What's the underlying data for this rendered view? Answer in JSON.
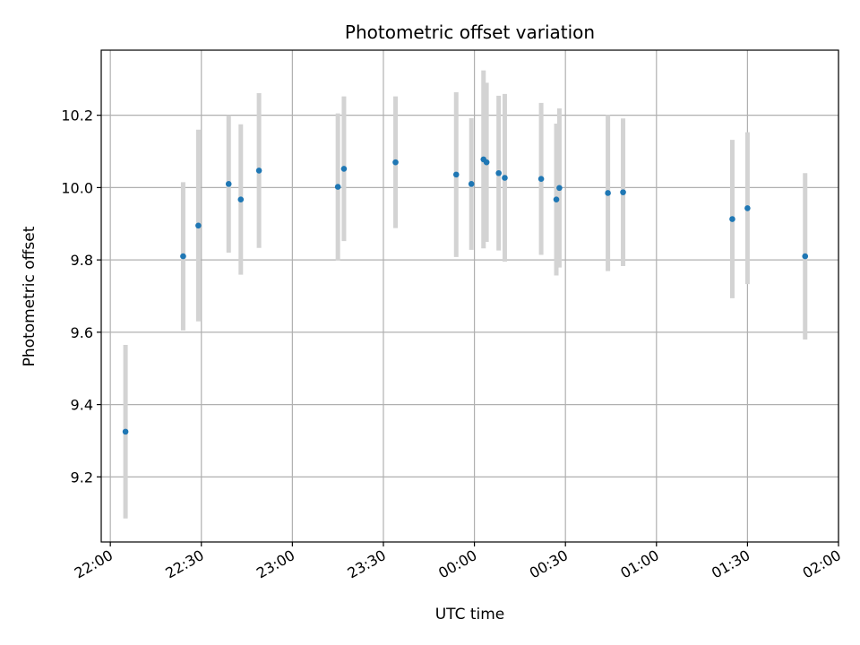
{
  "chart_data": {
    "type": "scatter",
    "title": "Photometric offset variation",
    "xlabel": "UTC time",
    "ylabel": "Photometric offset",
    "x_ticks": [
      "22:00",
      "22:30",
      "23:00",
      "23:30",
      "00:00",
      "00:30",
      "01:00",
      "01:30",
      "02:00"
    ],
    "y_ticks": [
      "9.2",
      "9.4",
      "9.6",
      "9.8",
      "10.0",
      "10.2"
    ],
    "xlim": [
      "21:57",
      "02:00"
    ],
    "ylim": [
      9.02,
      10.38
    ],
    "grid": true,
    "point_color": "#1f77b4",
    "errorbar_color": "#d3d3d3",
    "points": [
      {
        "time": "22:05",
        "y": 9.325,
        "err": 0.24
      },
      {
        "time": "22:24",
        "y": 9.81,
        "err": 0.205
      },
      {
        "time": "22:29",
        "y": 9.895,
        "err": 0.265
      },
      {
        "time": "22:39",
        "y": 10.01,
        "err": 0.19
      },
      {
        "time": "22:43",
        "y": 9.967,
        "err": 0.208
      },
      {
        "time": "22:49",
        "y": 10.047,
        "err": 0.214
      },
      {
        "time": "23:15",
        "y": 10.002,
        "err": 0.203
      },
      {
        "time": "23:17",
        "y": 10.052,
        "err": 0.2
      },
      {
        "time": "23:34",
        "y": 10.07,
        "err": 0.182
      },
      {
        "time": "23:54",
        "y": 10.036,
        "err": 0.228
      },
      {
        "time": "23:59",
        "y": 10.01,
        "err": 0.182
      },
      {
        "time": "00:03",
        "y": 10.078,
        "err": 0.246
      },
      {
        "time": "00:04",
        "y": 10.07,
        "err": 0.22
      },
      {
        "time": "00:08",
        "y": 10.04,
        "err": 0.214
      },
      {
        "time": "00:10",
        "y": 10.027,
        "err": 0.232
      },
      {
        "time": "00:22",
        "y": 10.024,
        "err": 0.21
      },
      {
        "time": "00:27",
        "y": 9.967,
        "err": 0.21
      },
      {
        "time": "00:28",
        "y": 9.999,
        "err": 0.22
      },
      {
        "time": "00:44",
        "y": 9.985,
        "err": 0.216
      },
      {
        "time": "00:49",
        "y": 9.987,
        "err": 0.204
      },
      {
        "time": "01:25",
        "y": 9.913,
        "err": 0.219
      },
      {
        "time": "01:30",
        "y": 9.943,
        "err": 0.21
      },
      {
        "time": "01:49",
        "y": 9.81,
        "err": 0.23
      }
    ]
  }
}
